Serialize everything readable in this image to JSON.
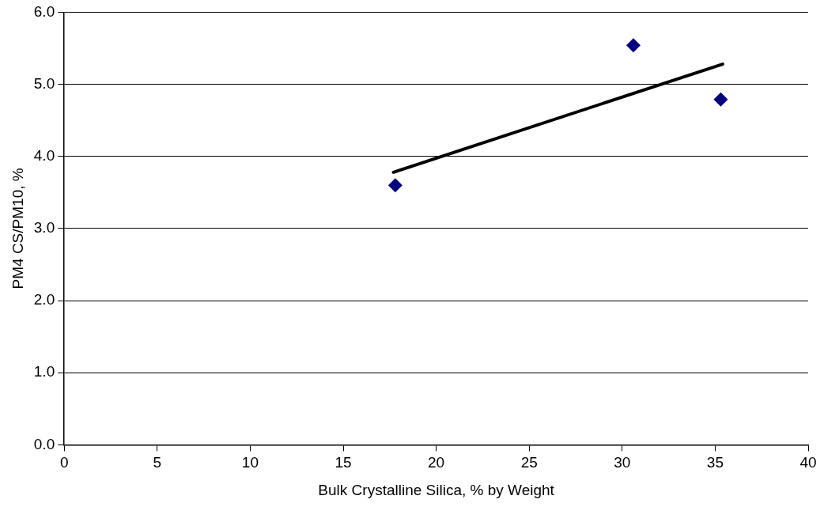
{
  "chart_data": {
    "type": "scatter",
    "xlabel": "Bulk Crystalline Silica, % by Weight",
    "ylabel": "PM4 CS/PM10, %",
    "xlim": [
      0,
      40
    ],
    "xticks": [
      0,
      5,
      10,
      15,
      20,
      25,
      30,
      35,
      40
    ],
    "ylim": [
      0,
      6
    ],
    "yticks": [
      {
        "value": 0,
        "label": "0.0"
      },
      {
        "value": 1,
        "label": "1.0"
      },
      {
        "value": 2,
        "label": "2.0"
      },
      {
        "value": 3,
        "label": "3.0"
      },
      {
        "value": 4,
        "label": "4.0"
      },
      {
        "value": 5,
        "label": "5.0"
      },
      {
        "value": 6,
        "label": "6.0"
      }
    ],
    "grid": "y",
    "legend": false,
    "marker": "diamond",
    "series": [
      {
        "type": "scatter",
        "color": "#000080",
        "x": [
          17.8,
          30.6,
          35.3
        ],
        "values": [
          3.6,
          5.54,
          4.79
        ]
      },
      {
        "type": "line",
        "color": "#000000",
        "marker": "none",
        "x": [
          17.7,
          35.4
        ],
        "values": [
          3.78,
          5.28
        ]
      }
    ]
  }
}
